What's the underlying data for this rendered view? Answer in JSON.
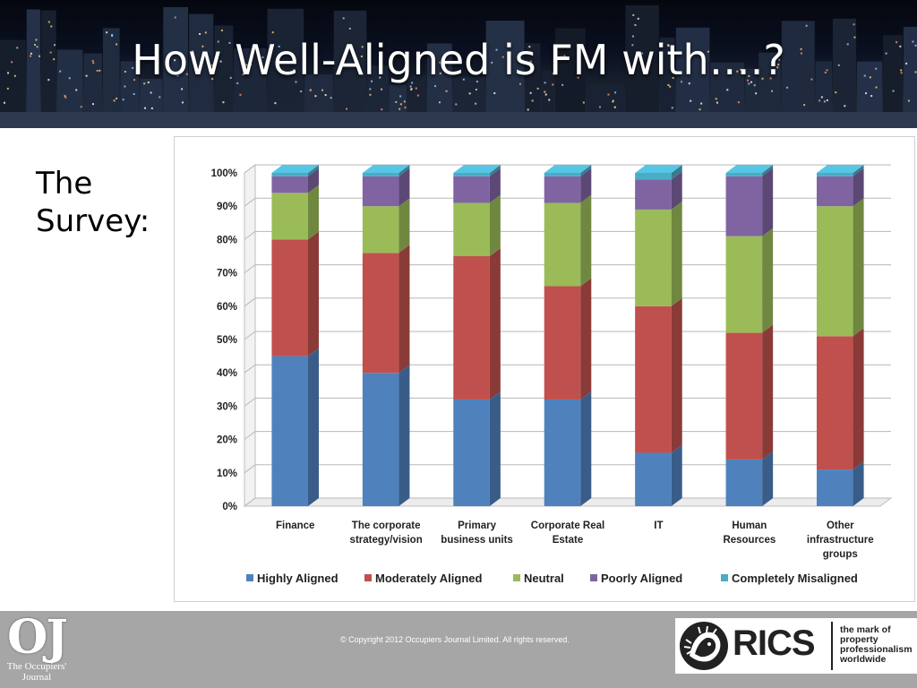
{
  "slide": {
    "title": "How Well-Aligned is FM with….?",
    "survey_label_line1": "The",
    "survey_label_line2": "Survey:"
  },
  "footer": {
    "copyright": "© Copyright 2012 Occupiers Journal Limited. All rights reserved.",
    "oj_mark": "OJ",
    "oj_name_line1": "The Occupiers'",
    "oj_name_line2": "Journal",
    "rics_word": "RICS",
    "rics_tagline": [
      "the mark of",
      "property",
      "professionalism",
      "worldwide"
    ]
  },
  "colors": {
    "header_bg": "#0a1020",
    "footer_bg": "#a6a6a6"
  },
  "chart_data": {
    "type": "bar",
    "stacked": true,
    "style": "3d",
    "categories": [
      [
        "Finance"
      ],
      [
        "The corporate",
        "strategy/vision"
      ],
      [
        "Primary",
        "business units"
      ],
      [
        "Corporate Real",
        "Estate"
      ],
      [
        "IT"
      ],
      [
        "Human",
        "Resources"
      ],
      [
        "Other",
        "infrastructure",
        "groups"
      ]
    ],
    "series": [
      {
        "name": "Highly Aligned",
        "color": "#4f81bd",
        "values": [
          45,
          40,
          32,
          32,
          16,
          14,
          11
        ]
      },
      {
        "name": "Moderately Aligned",
        "color": "#c0504d",
        "values": [
          35,
          36,
          43,
          34,
          44,
          38,
          40
        ]
      },
      {
        "name": "Neutral",
        "color": "#9bbb59",
        "values": [
          14,
          14,
          16,
          25,
          29,
          29,
          39
        ]
      },
      {
        "name": "Poorly Aligned",
        "color": "#8064a2",
        "values": [
          5,
          9,
          8,
          8,
          9,
          18,
          9
        ]
      },
      {
        "name": "Completely Misaligned",
        "color": "#4bacc6",
        "values": [
          1,
          1,
          1,
          1,
          2,
          1,
          1
        ]
      }
    ],
    "ylim": [
      0,
      100
    ],
    "yticks": [
      "0%",
      "10%",
      "20%",
      "30%",
      "40%",
      "50%",
      "60%",
      "70%",
      "80%",
      "90%",
      "100%"
    ],
    "grid": true,
    "legend": "bottom"
  }
}
